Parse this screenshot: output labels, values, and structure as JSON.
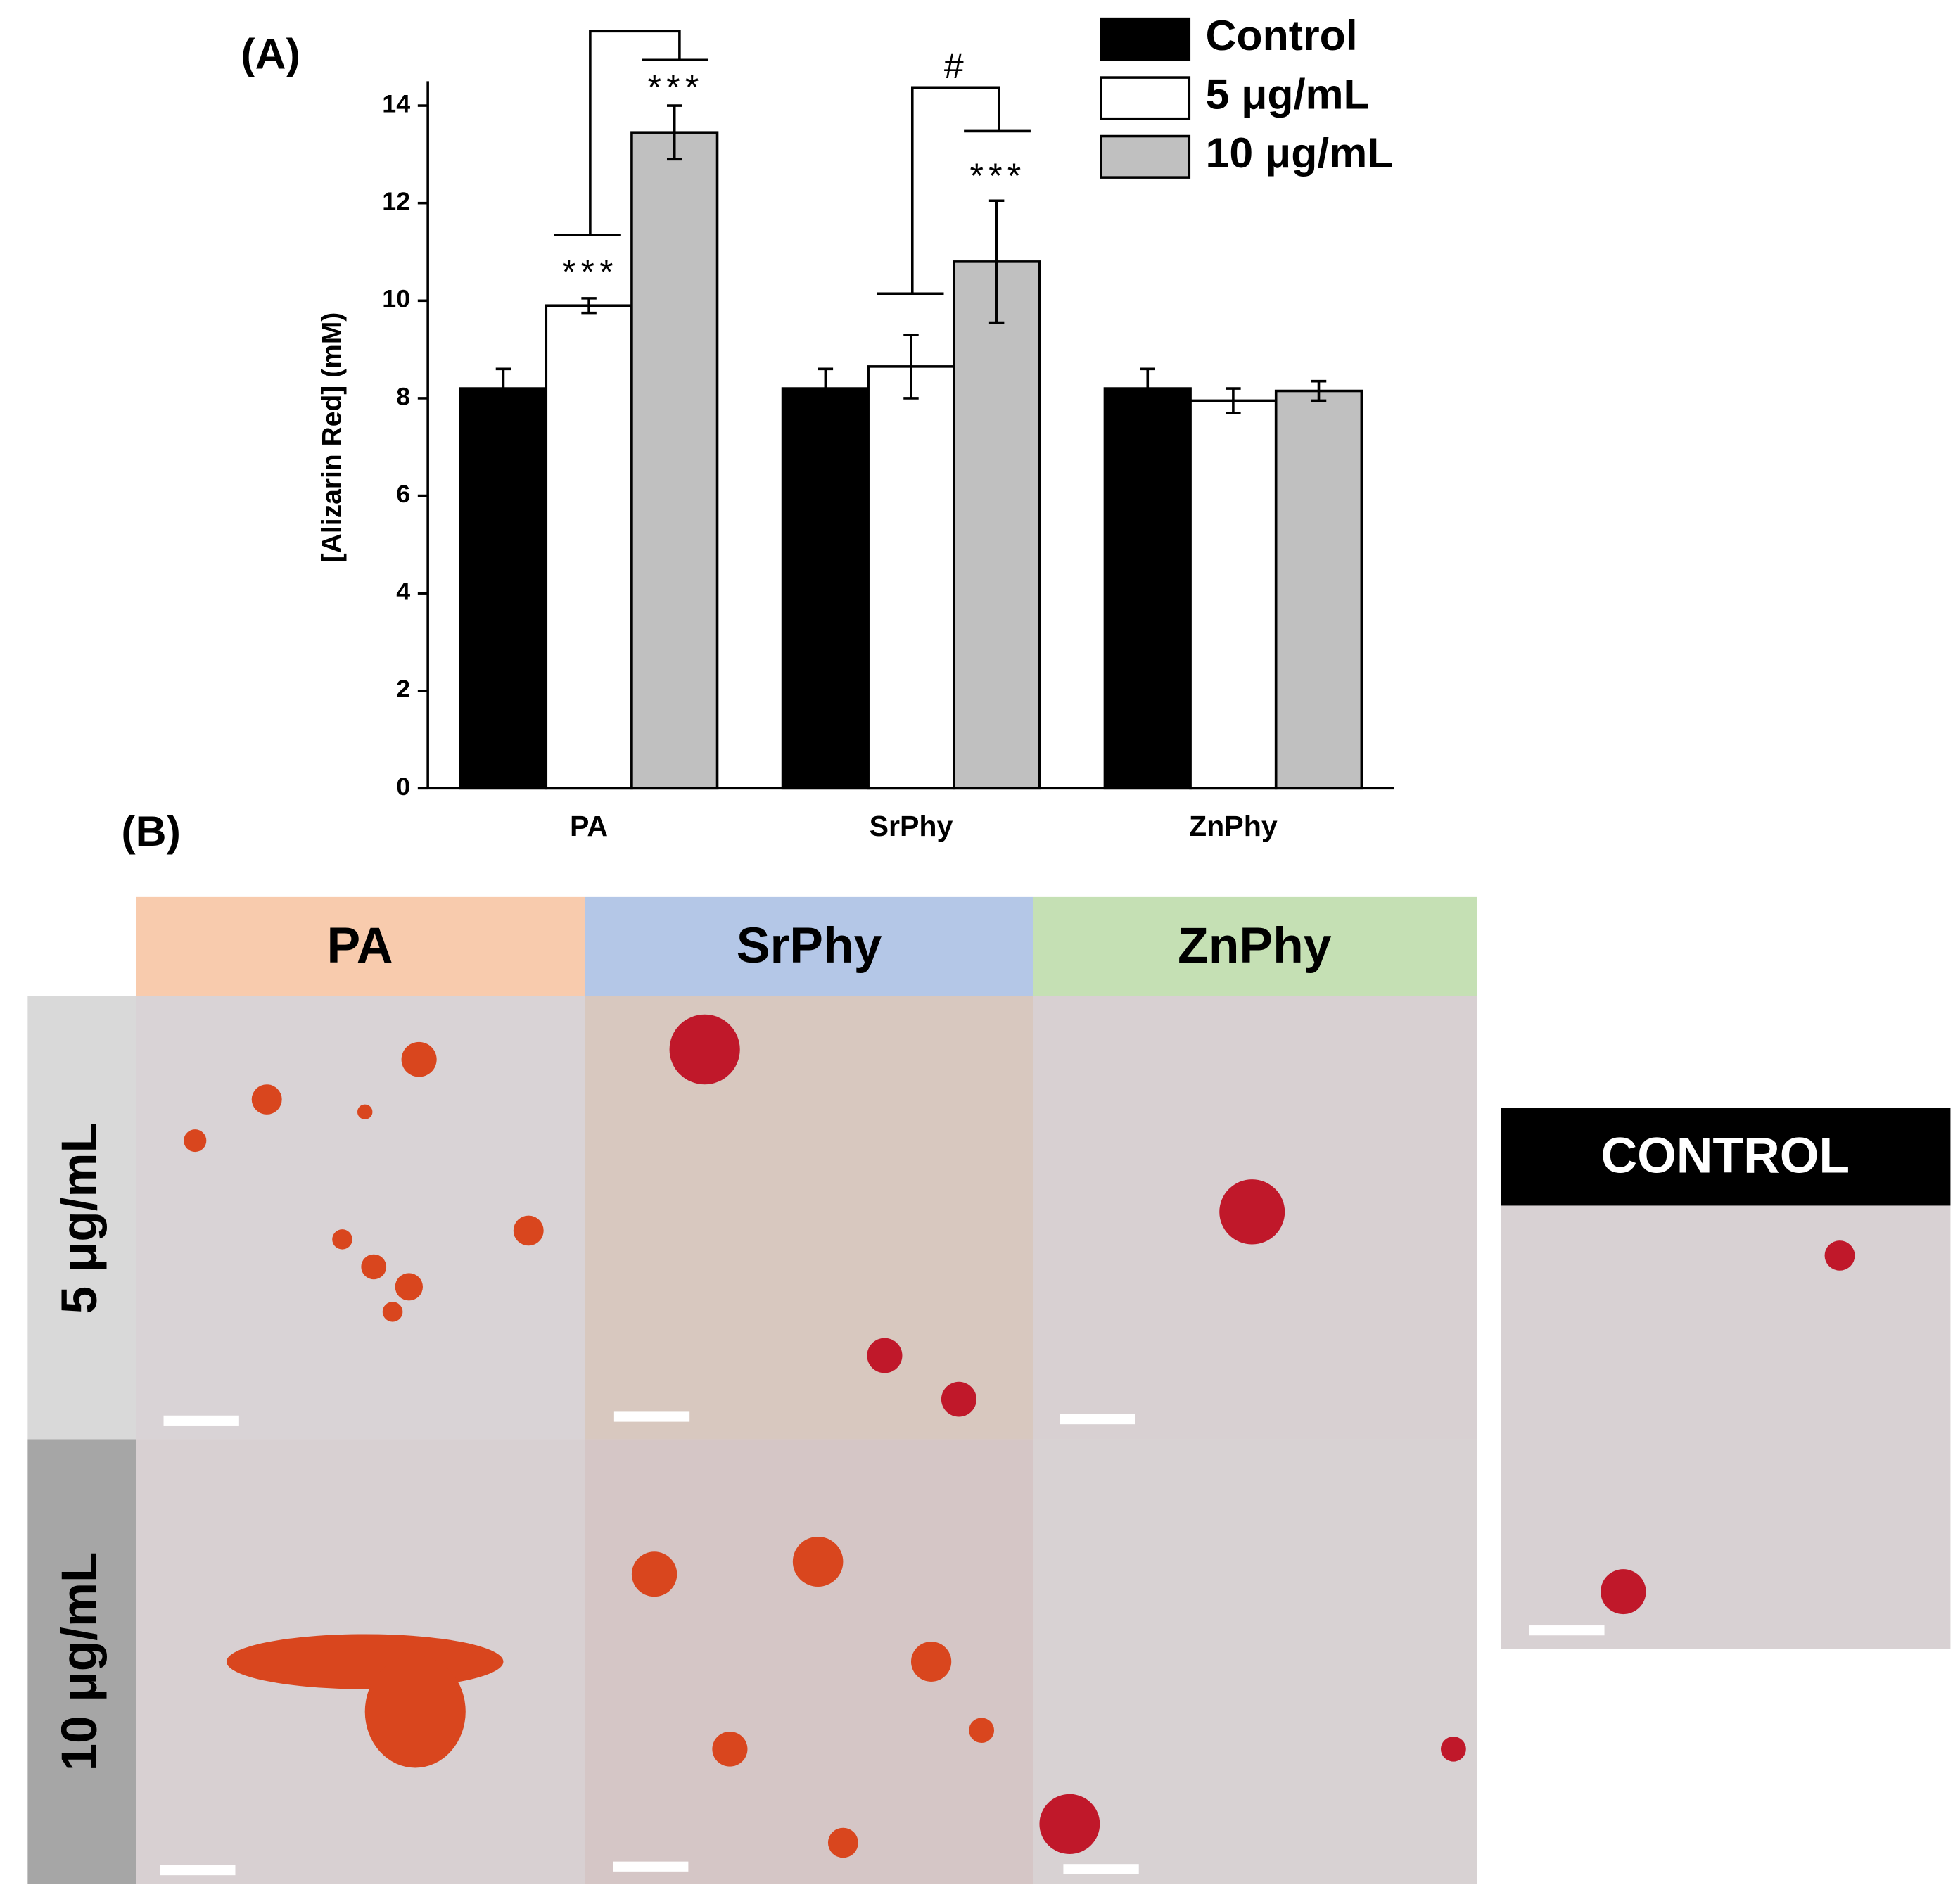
{
  "chart_data": {
    "type": "bar",
    "panel_label": "(A)",
    "y_label": "[Alizarin Red] (mM)",
    "categories": [
      "PA",
      "SrPhy",
      "ZnPhy"
    ],
    "series": [
      {
        "name": "Control",
        "color": "#000000",
        "values": [
          8.2,
          8.2,
          8.2
        ],
        "errors": [
          0.4,
          0.4,
          0.4
        ]
      },
      {
        "name": "5 μg/mL",
        "color": "#ffffff",
        "values": [
          9.9,
          8.65,
          7.95
        ],
        "errors": [
          0.15,
          0.65,
          0.25
        ]
      },
      {
        "name": "10 μg/mL",
        "color": "#c0c0c0",
        "values": [
          13.45,
          10.8,
          8.15
        ],
        "errors": [
          0.55,
          1.25,
          0.2
        ]
      }
    ],
    "ylim": [
      0,
      14.5
    ],
    "yticks": [
      0,
      2,
      4,
      6,
      8,
      10,
      12,
      14
    ],
    "annotations": [
      "***",
      "***",
      "***",
      "#"
    ]
  },
  "panel_b": {
    "label": "(B)",
    "columns": [
      "PA",
      "SrPhy",
      "ZnPhy"
    ],
    "rows": [
      "5 μg/mL",
      "10 μg/mL"
    ],
    "control": "CONTROL"
  }
}
